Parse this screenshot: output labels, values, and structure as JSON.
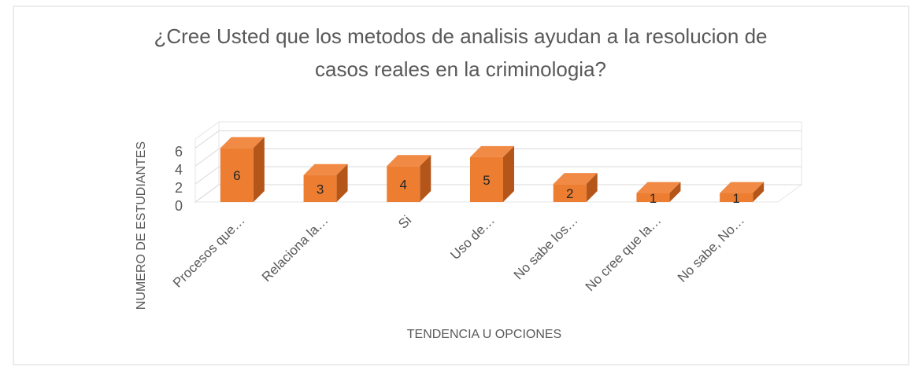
{
  "chart_data": {
    "type": "bar3d",
    "title": [
      "¿Cree Usted que los metodos de analisis ayudan a la resolucion de",
      "casos reales en la criminologia?"
    ],
    "x_label": "TENDENCIA U OPCIONES",
    "y_label": "NUMERO DE ESTUDIANTES",
    "categories": [
      "Procesos que…",
      "Relaciona la…",
      "Si",
      "Uso de…",
      "No sabe los…",
      "No cree que la…",
      "No sabe, No…"
    ],
    "values": [
      6,
      3,
      4,
      5,
      2,
      1,
      1
    ],
    "color": "#ed7d31",
    "ylim": [
      0,
      7
    ],
    "yticks": [
      0,
      2,
      4,
      6
    ],
    "grid": true
  }
}
